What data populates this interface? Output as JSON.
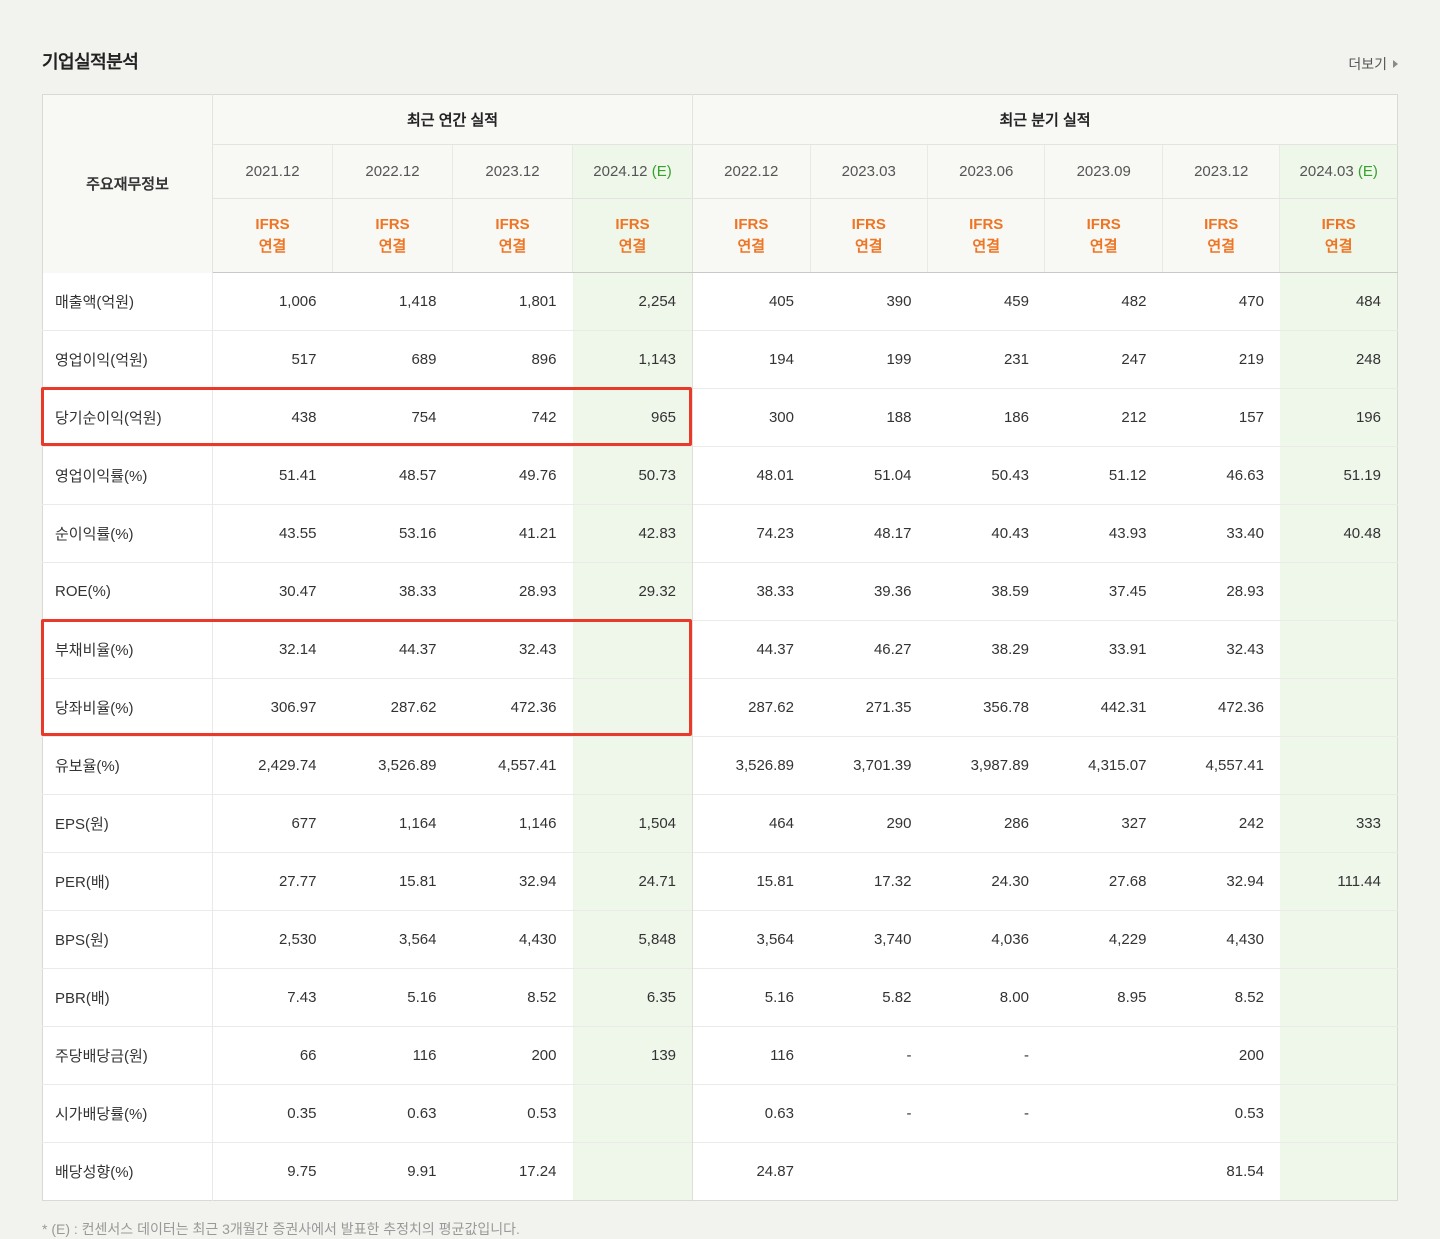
{
  "page": {
    "title": "기업실적분석",
    "more_label": "더보기",
    "footnote": "* (E) : 컨센서스 데이터는 최근 3개월간 증권사에서 발표한 추정치의 평균값입니다."
  },
  "colors": {
    "accent_orange": "#ee7524",
    "estimate_green": "#36a12c",
    "estimate_bg": "#eff6ea",
    "highlight_red": "#e8392b"
  },
  "table": {
    "label_header": "주요재무정보",
    "groups": [
      {
        "label": "최근 연간 실적",
        "cols": 4
      },
      {
        "label": "최근 분기 실적",
        "cols": 6
      }
    ],
    "columns": [
      {
        "period": "2021.12",
        "suffix": "",
        "standard": "IFRS",
        "scope": "연결",
        "estimate": false
      },
      {
        "period": "2022.12",
        "suffix": "",
        "standard": "IFRS",
        "scope": "연결",
        "estimate": false
      },
      {
        "period": "2023.12",
        "suffix": "",
        "standard": "IFRS",
        "scope": "연결",
        "estimate": false
      },
      {
        "period": "2024.12",
        "suffix": "(E)",
        "standard": "IFRS",
        "scope": "연결",
        "estimate": true
      },
      {
        "period": "2022.12",
        "suffix": "",
        "standard": "IFRS",
        "scope": "연결",
        "estimate": false
      },
      {
        "period": "2023.03",
        "suffix": "",
        "standard": "IFRS",
        "scope": "연결",
        "estimate": false
      },
      {
        "period": "2023.06",
        "suffix": "",
        "standard": "IFRS",
        "scope": "연결",
        "estimate": false
      },
      {
        "period": "2023.09",
        "suffix": "",
        "standard": "IFRS",
        "scope": "연결",
        "estimate": false
      },
      {
        "period": "2023.12",
        "suffix": "",
        "standard": "IFRS",
        "scope": "연결",
        "estimate": false
      },
      {
        "period": "2024.03",
        "suffix": "(E)",
        "standard": "IFRS",
        "scope": "연결",
        "estimate": true
      }
    ],
    "rows": [
      {
        "label": "매출액(억원)",
        "values": [
          "1,006",
          "1,418",
          "1,801",
          "2,254",
          "405",
          "390",
          "459",
          "482",
          "470",
          "484"
        ]
      },
      {
        "label": "영업이익(억원)",
        "values": [
          "517",
          "689",
          "896",
          "1,143",
          "194",
          "199",
          "231",
          "247",
          "219",
          "248"
        ]
      },
      {
        "label": "당기순이익(억원)",
        "values": [
          "438",
          "754",
          "742",
          "965",
          "300",
          "188",
          "186",
          "212",
          "157",
          "196"
        ]
      },
      {
        "label": "영업이익률(%)",
        "values": [
          "51.41",
          "48.57",
          "49.76",
          "50.73",
          "48.01",
          "51.04",
          "50.43",
          "51.12",
          "46.63",
          "51.19"
        ]
      },
      {
        "label": "순이익률(%)",
        "values": [
          "43.55",
          "53.16",
          "41.21",
          "42.83",
          "74.23",
          "48.17",
          "40.43",
          "43.93",
          "33.40",
          "40.48"
        ]
      },
      {
        "label": "ROE(%)",
        "values": [
          "30.47",
          "38.33",
          "28.93",
          "29.32",
          "38.33",
          "39.36",
          "38.59",
          "37.45",
          "28.93",
          ""
        ]
      },
      {
        "label": "부채비율(%)",
        "values": [
          "32.14",
          "44.37",
          "32.43",
          "",
          "44.37",
          "46.27",
          "38.29",
          "33.91",
          "32.43",
          ""
        ]
      },
      {
        "label": "당좌비율(%)",
        "values": [
          "306.97",
          "287.62",
          "472.36",
          "",
          "287.62",
          "271.35",
          "356.78",
          "442.31",
          "472.36",
          ""
        ]
      },
      {
        "label": "유보율(%)",
        "values": [
          "2,429.74",
          "3,526.89",
          "4,557.41",
          "",
          "3,526.89",
          "3,701.39",
          "3,987.89",
          "4,315.07",
          "4,557.41",
          ""
        ]
      },
      {
        "label": "EPS(원)",
        "values": [
          "677",
          "1,164",
          "1,146",
          "1,504",
          "464",
          "290",
          "286",
          "327",
          "242",
          "333"
        ]
      },
      {
        "label": "PER(배)",
        "values": [
          "27.77",
          "15.81",
          "32.94",
          "24.71",
          "15.81",
          "17.32",
          "24.30",
          "27.68",
          "32.94",
          "111.44"
        ]
      },
      {
        "label": "BPS(원)",
        "values": [
          "2,530",
          "3,564",
          "4,430",
          "5,848",
          "3,564",
          "3,740",
          "4,036",
          "4,229",
          "4,430",
          ""
        ]
      },
      {
        "label": "PBR(배)",
        "values": [
          "7.43",
          "5.16",
          "8.52",
          "6.35",
          "5.16",
          "5.82",
          "8.00",
          "8.95",
          "8.52",
          ""
        ]
      },
      {
        "label": "주당배당금(원)",
        "values": [
          "66",
          "116",
          "200",
          "139",
          "116",
          "-",
          "-",
          "",
          "200",
          ""
        ]
      },
      {
        "label": "시가배당률(%)",
        "values": [
          "0.35",
          "0.63",
          "0.53",
          "",
          "0.63",
          "-",
          "-",
          "",
          "0.53",
          ""
        ]
      },
      {
        "label": "배당성향(%)",
        "values": [
          "9.75",
          "9.91",
          "17.24",
          "",
          "24.87",
          "",
          "",
          "",
          "81.54",
          ""
        ]
      }
    ],
    "highlights": [
      {
        "row_start": 2,
        "row_end": 2,
        "include_label": true,
        "value_col_start": 0,
        "value_col_end": 3
      },
      {
        "row_start": 6,
        "row_end": 7,
        "include_label": true,
        "value_col_start": 0,
        "value_col_end": 3
      }
    ]
  }
}
